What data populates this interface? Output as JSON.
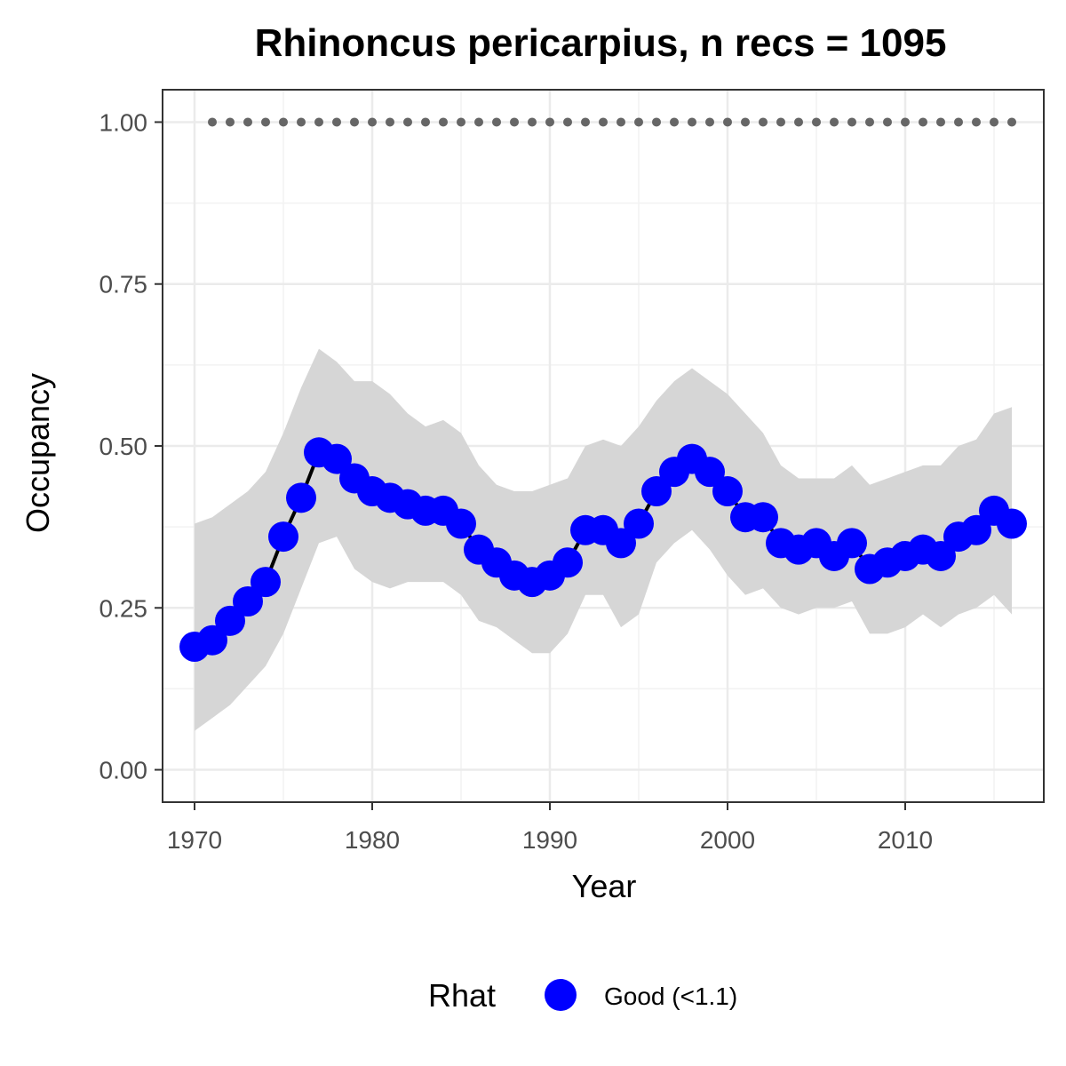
{
  "chart_data": {
    "type": "line",
    "title": "Rhinoncus pericarpius, n recs = 1095",
    "xlabel": "Year",
    "ylabel": "Occupancy",
    "xlim": [
      1968.2,
      2017.8
    ],
    "ylim": [
      -0.05,
      1.05
    ],
    "x_ticks": [
      1970,
      1980,
      1990,
      2000,
      2010
    ],
    "x_tick_labels": [
      "1970",
      "1980",
      "1990",
      "2000",
      "2010"
    ],
    "y_ticks": [
      0,
      0.25,
      0.5,
      0.75,
      1.0
    ],
    "y_tick_labels": [
      "0.00",
      "0.25",
      "0.50",
      "0.75",
      "1.00"
    ],
    "grid": true,
    "legend": {
      "title": "Rhat",
      "position": "bottom",
      "entries": [
        {
          "label": "Good (<1.1)",
          "color": "#0000ff"
        }
      ]
    },
    "colors": {
      "point": "#0000ff",
      "line": "#000000",
      "ribbon": "#d6d6d6",
      "records": "#666666"
    },
    "x": [
      1970,
      1971,
      1972,
      1973,
      1974,
      1975,
      1976,
      1977,
      1978,
      1979,
      1980,
      1981,
      1982,
      1983,
      1984,
      1985,
      1986,
      1987,
      1988,
      1989,
      1990,
      1991,
      1992,
      1993,
      1994,
      1995,
      1996,
      1997,
      1998,
      1999,
      2000,
      2001,
      2002,
      2003,
      2004,
      2005,
      2006,
      2007,
      2008,
      2009,
      2010,
      2011,
      2012,
      2013,
      2014,
      2015,
      2016
    ],
    "series": [
      {
        "values": [
          0.19,
          0.2,
          0.23,
          0.26,
          0.29,
          0.36,
          0.42,
          0.49,
          0.48,
          0.45,
          0.43,
          0.42,
          0.41,
          0.4,
          0.4,
          0.38,
          0.34,
          0.32,
          0.3,
          0.29,
          0.3,
          0.32,
          0.37,
          0.37,
          0.35,
          0.38,
          0.43,
          0.46,
          0.48,
          0.46,
          0.43,
          0.39,
          0.39,
          0.35,
          0.34,
          0.35,
          0.33,
          0.35,
          0.31,
          0.32,
          0.33,
          0.34,
          0.33,
          0.36,
          0.37,
          0.4,
          0.38
        ],
        "lower": [
          0.06,
          0.08,
          0.1,
          0.13,
          0.16,
          0.21,
          0.28,
          0.35,
          0.36,
          0.31,
          0.29,
          0.28,
          0.29,
          0.29,
          0.29,
          0.27,
          0.23,
          0.22,
          0.2,
          0.18,
          0.18,
          0.21,
          0.27,
          0.27,
          0.22,
          0.24,
          0.32,
          0.35,
          0.37,
          0.34,
          0.3,
          0.27,
          0.28,
          0.25,
          0.24,
          0.25,
          0.25,
          0.26,
          0.21,
          0.21,
          0.22,
          0.24,
          0.22,
          0.24,
          0.25,
          0.27,
          0.24
        ],
        "upper": [
          0.38,
          0.39,
          0.41,
          0.43,
          0.46,
          0.52,
          0.59,
          0.65,
          0.63,
          0.6,
          0.6,
          0.58,
          0.55,
          0.53,
          0.54,
          0.52,
          0.47,
          0.44,
          0.43,
          0.43,
          0.44,
          0.45,
          0.5,
          0.51,
          0.5,
          0.53,
          0.57,
          0.6,
          0.62,
          0.6,
          0.58,
          0.55,
          0.52,
          0.47,
          0.45,
          0.45,
          0.45,
          0.47,
          0.44,
          0.45,
          0.46,
          0.47,
          0.47,
          0.5,
          0.51,
          0.55,
          0.56
        ]
      },
      {
        "x": [
          1971,
          1972,
          1973,
          1974,
          1975,
          1976,
          1977,
          1978,
          1979,
          1980,
          1981,
          1982,
          1983,
          1984,
          1985,
          1986,
          1987,
          1988,
          1989,
          1990,
          1991,
          1992,
          1993,
          1994,
          1995,
          1996,
          1997,
          1998,
          1999,
          2000,
          2001,
          2002,
          2003,
          2004,
          2005,
          2006,
          2007,
          2008,
          2009,
          2010,
          2011,
          2012,
          2013,
          2014,
          2015,
          2016
        ],
        "values": [
          1,
          1,
          1,
          1,
          1,
          1,
          1,
          1,
          1,
          1,
          1,
          1,
          1,
          1,
          1,
          1,
          1,
          1,
          1,
          1,
          1,
          1,
          1,
          1,
          1,
          1,
          1,
          1,
          1,
          1,
          1,
          1,
          1,
          1,
          1,
          1,
          1,
          1,
          1,
          1,
          1,
          1,
          1,
          1,
          1,
          1
        ]
      }
    ]
  }
}
